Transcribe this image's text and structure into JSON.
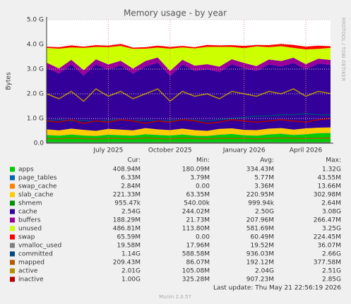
{
  "chart_data": {
    "type": "area",
    "title": "Memory usage - by year",
    "y_label": "Bytes",
    "side_text": "RRDTOOL / TOBI OETIKER",
    "ylim": [
      0,
      5
    ],
    "yticks": [
      {
        "value": 0,
        "label": "0.0"
      },
      {
        "value": 1,
        "label": "1.0 G"
      },
      {
        "value": 2,
        "label": "2.0 G"
      },
      {
        "value": 3,
        "label": "3.0 G"
      },
      {
        "value": 4,
        "label": "4.0 G"
      },
      {
        "value": 5,
        "label": "5.0 G"
      }
    ],
    "grid": true,
    "categories": [
      null,
      null,
      null,
      null,
      null,
      "July 2025",
      null,
      null,
      null,
      null,
      "October 2025",
      null,
      null,
      null,
      null,
      null,
      "January 2026",
      null,
      null,
      null,
      null,
      "April 2026",
      null,
      null
    ],
    "column_headers": [
      "Cur:",
      "Min:",
      "Avg:",
      "Max:"
    ],
    "series": [
      {
        "name": "apps",
        "color": "#00cc00",
        "stack": true,
        "stats": [
          "408.94M",
          "180.09M",
          "334.43M",
          "1.32G"
        ],
        "values": [
          0.33,
          0.3,
          0.35,
          0.31,
          0.29,
          0.34,
          0.32,
          0.3,
          0.36,
          0.33,
          0.31,
          0.35,
          0.3,
          0.29,
          0.34,
          0.37,
          0.32,
          0.3,
          0.35,
          0.38,
          0.33,
          0.36,
          0.4,
          0.41
        ]
      },
      {
        "name": "page_tables",
        "color": "#0066b3",
        "stack": true,
        "stats": [
          "6.33M",
          "3.79M",
          "5.77M",
          "43.55M"
        ],
        "values": [
          0.006,
          0.006,
          0.005,
          0.006,
          0.006,
          0.006,
          0.005,
          0.006,
          0.006,
          0.006,
          0.006,
          0.005,
          0.006,
          0.006,
          0.006,
          0.006,
          0.005,
          0.006,
          0.006,
          0.006,
          0.006,
          0.006,
          0.006,
          0.006
        ]
      },
      {
        "name": "swap_cache",
        "color": "#ff8000",
        "stack": true,
        "stats": [
          "2.84M",
          "0.00",
          "3.36M",
          "13.66M"
        ],
        "values": [
          0.003,
          0.003,
          0.004,
          0.003,
          0.003,
          0.003,
          0.004,
          0.003,
          0.003,
          0.003,
          0.003,
          0.004,
          0.003,
          0.003,
          0.003,
          0.003,
          0.004,
          0.003,
          0.003,
          0.003,
          0.003,
          0.003,
          0.003,
          0.003
        ]
      },
      {
        "name": "slab_cache",
        "color": "#ffcc00",
        "stack": true,
        "stats": [
          "221.33M",
          "63.35M",
          "220.95M",
          "302.98M"
        ],
        "values": [
          0.22,
          0.21,
          0.23,
          0.22,
          0.2,
          0.23,
          0.22,
          0.21,
          0.24,
          0.22,
          0.21,
          0.23,
          0.22,
          0.2,
          0.23,
          0.22,
          0.21,
          0.22,
          0.23,
          0.22,
          0.21,
          0.23,
          0.22,
          0.22
        ]
      },
      {
        "name": "shmem",
        "color": "#008f00",
        "stack": true,
        "stats": [
          "955.47k",
          "540.00k",
          "999.94k",
          "2.64M"
        ],
        "values": [
          0.001,
          0.001,
          0.001,
          0.001,
          0.001,
          0.001,
          0.001,
          0.001,
          0.001,
          0.001,
          0.001,
          0.001,
          0.001,
          0.001,
          0.001,
          0.001,
          0.001,
          0.001,
          0.001,
          0.001,
          0.001,
          0.001,
          0.001,
          0.001
        ]
      },
      {
        "name": "cache",
        "color": "#330099",
        "stack": true,
        "stats": [
          "2.54G",
          "244.02M",
          "2.50G",
          "3.08G"
        ],
        "values": [
          2.5,
          2.3,
          2.6,
          2.2,
          2.7,
          2.4,
          2.6,
          2.3,
          2.5,
          2.7,
          2.2,
          2.6,
          2.4,
          2.5,
          2.3,
          2.6,
          2.5,
          2.4,
          2.6,
          2.5,
          2.7,
          2.4,
          2.6,
          2.54
        ]
      },
      {
        "name": "buffers",
        "color": "#990099",
        "stack": true,
        "stats": [
          "188.29M",
          "21.73M",
          "207.96M",
          "266.47M"
        ],
        "values": [
          0.2,
          0.21,
          0.19,
          0.22,
          0.2,
          0.21,
          0.19,
          0.2,
          0.22,
          0.21,
          0.2,
          0.19,
          0.21,
          0.2,
          0.22,
          0.2,
          0.21,
          0.19,
          0.2,
          0.22,
          0.21,
          0.2,
          0.19,
          0.19
        ]
      },
      {
        "name": "unused",
        "color": "#ccff00",
        "stack": true,
        "stats": [
          "486.81M",
          "113.80M",
          "581.69M",
          "3.25G"
        ],
        "values": [
          0.6,
          0.8,
          0.5,
          0.9,
          0.5,
          0.7,
          0.6,
          0.8,
          0.5,
          0.4,
          0.9,
          0.5,
          0.7,
          0.7,
          0.8,
          0.5,
          0.6,
          0.8,
          0.5,
          0.6,
          0.4,
          0.6,
          0.4,
          0.49
        ]
      },
      {
        "name": "swap",
        "color": "#ff0000",
        "stack": true,
        "stats": [
          "65.59M",
          "0.00",
          "60.49M",
          "224.45M"
        ],
        "values": [
          0.05,
          0.06,
          0.08,
          0.05,
          0.07,
          0.06,
          0.09,
          0.05,
          0.06,
          0.08,
          0.07,
          0.06,
          0.05,
          0.08,
          0.06,
          0.07,
          0.09,
          0.06,
          0.08,
          0.1,
          0.12,
          0.11,
          0.13,
          0.07
        ]
      },
      {
        "name": "vmalloc_used",
        "color": "#808080",
        "stack": false,
        "stats": [
          "19.58M",
          "17.96M",
          "19.52M",
          "36.07M"
        ],
        "values": [
          0.02,
          0.02,
          0.02,
          0.02,
          0.02,
          0.02,
          0.02,
          0.02,
          0.02,
          0.02,
          0.02,
          0.02,
          0.02,
          0.02,
          0.02,
          0.02,
          0.02,
          0.02,
          0.02,
          0.02,
          0.02,
          0.02,
          0.02,
          0.02
        ]
      },
      {
        "name": "committed",
        "color": "#00487d",
        "stack": false,
        "stats": [
          "1.14G",
          "588.58M",
          "936.03M",
          "2.66G"
        ],
        "values": [
          0.9,
          0.95,
          0.9,
          0.92,
          0.88,
          0.93,
          0.95,
          0.9,
          0.94,
          0.9,
          0.92,
          0.95,
          0.93,
          0.9,
          0.95,
          1.0,
          1.05,
          1.1,
          1.1,
          1.15,
          1.15,
          1.2,
          1.15,
          1.14
        ]
      },
      {
        "name": "mapped",
        "color": "#b35a00",
        "stack": false,
        "stats": [
          "209.43M",
          "86.07M",
          "192.12M",
          "377.58M"
        ],
        "values": [
          0.19,
          0.18,
          0.2,
          0.19,
          0.17,
          0.2,
          0.19,
          0.18,
          0.21,
          0.19,
          0.18,
          0.2,
          0.19,
          0.18,
          0.2,
          0.19,
          0.2,
          0.18,
          0.19,
          0.21,
          0.2,
          0.19,
          0.2,
          0.21
        ]
      },
      {
        "name": "active",
        "color": "#b38f00",
        "stack": false,
        "stats": [
          "2.01G",
          "105.08M",
          "2.04G",
          "2.51G"
        ],
        "values": [
          2.0,
          1.8,
          2.1,
          1.7,
          2.2,
          1.9,
          2.1,
          1.8,
          2.0,
          2.2,
          1.7,
          2.1,
          1.9,
          2.0,
          1.8,
          2.1,
          2.0,
          1.9,
          2.1,
          2.0,
          2.2,
          1.9,
          2.1,
          2.01
        ]
      },
      {
        "name": "inactive",
        "color": "#b30000",
        "stack": false,
        "stats": [
          "1.00G",
          "325.28M",
          "907.23M",
          "2.85G"
        ],
        "values": [
          0.9,
          0.85,
          0.95,
          0.8,
          0.9,
          0.85,
          0.95,
          0.9,
          0.8,
          0.9,
          0.85,
          0.95,
          0.9,
          0.8,
          0.85,
          0.95,
          0.9,
          0.85,
          0.9,
          0.95,
          0.9,
          0.85,
          0.95,
          1.0
        ]
      }
    ],
    "last_update": "Last update: Thu May 21 22:56:19 2026",
    "footer": "Munin 2.0.57"
  }
}
